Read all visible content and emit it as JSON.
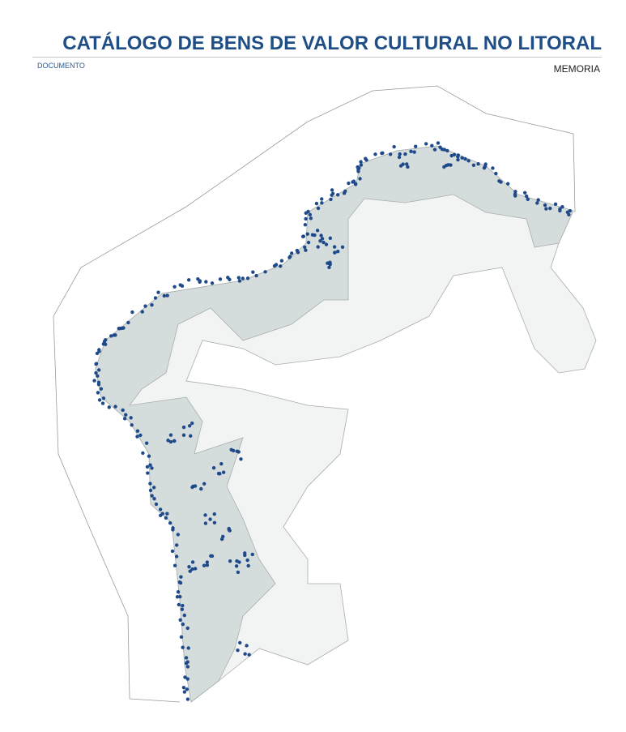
{
  "header": {
    "title": "CATÁLOGO DE BENS DE VALOR CULTURAL NO LITORAL",
    "left_label": "DOCUMENTO",
    "right_label": "MEMORIA"
  },
  "map": {
    "colors": {
      "coastal_municipalities": "#d5dcdc",
      "interior_municipalities": "#f2f4f4",
      "borders": "#a9adad",
      "heritage_points": "#1f4a8a",
      "boundary_line": "#9a9a9a"
    }
  }
}
